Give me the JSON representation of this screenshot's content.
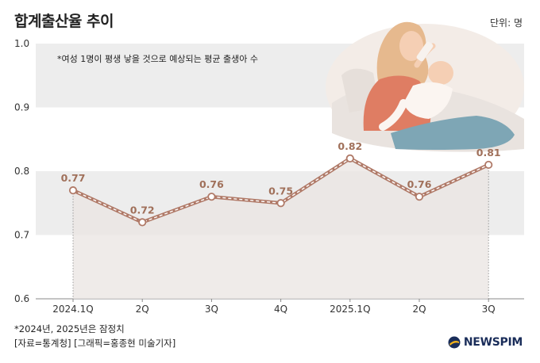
{
  "header": {
    "title": "합계출산율 추이",
    "unit": "단위: 명"
  },
  "annotation": "*여성 1명이 평생 낳을 것으로 예상되는 평균 출생아 수",
  "footnotes": {
    "note": "*2024년, 2025년은 잠정치",
    "source": "[자료=통계청] [그래픽=홍종현 미술기자]"
  },
  "logo": {
    "text": "NEWSPIM"
  },
  "colors": {
    "line": "#b07a68",
    "label": "#a0705a",
    "band": "#ededed",
    "area": "#eae4e1"
  },
  "chart_data": {
    "type": "area",
    "title": "합계출산율 추이",
    "categories": [
      "2024.1Q",
      "2Q",
      "3Q",
      "4Q",
      "2025.1Q",
      "2Q",
      "3Q"
    ],
    "values": [
      0.77,
      0.72,
      0.76,
      0.75,
      0.82,
      0.76,
      0.81
    ],
    "value_labels": [
      "0.77",
      "0.72",
      "0.76",
      "0.75",
      "0.82",
      "0.76",
      "0.81"
    ],
    "ylim": [
      0.6,
      1.0
    ],
    "yticks": [
      "0.6",
      "0.7",
      "0.8",
      "0.9",
      "1.0"
    ],
    "xlabel": "",
    "ylabel": "",
    "grid": "alternating horizontal bands",
    "legend": "none"
  }
}
